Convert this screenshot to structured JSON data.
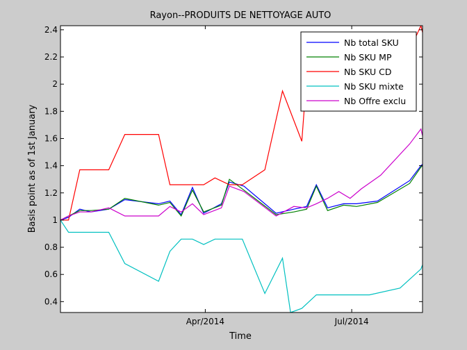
{
  "chart_data": {
    "type": "line",
    "title": "Rayon--PRODUITS DE NETTOYAGE AUTO",
    "xlabel": "Time",
    "ylabel": "Basis point as of 1st January",
    "xlim": [
      "2014-01-01",
      "2014-08-14"
    ],
    "ylim": [
      0.32,
      2.43
    ],
    "x_ticks": [
      {
        "date": "2014-04-01",
        "label": "Apr/2014"
      },
      {
        "date": "2014-07-01",
        "label": "Jul/2014"
      }
    ],
    "y_ticks": [
      0.4,
      0.6,
      0.8,
      1,
      1.2,
      1.4,
      1.6,
      1.8,
      2,
      2.2,
      2.4
    ],
    "y_tick_labels": [
      "0.4",
      "0.6",
      "0.8",
      "1",
      "1.2",
      "1.4",
      "1.6",
      "1.8",
      "2",
      "2.2",
      "2.4"
    ],
    "grid": false,
    "legend_position": "top-right",
    "series": [
      {
        "name": "Nb total SKU",
        "color": "#0000ff",
        "x": [
          "2014-01-01",
          "2014-01-06",
          "2014-01-13",
          "2014-01-20",
          "2014-01-31",
          "2014-02-10",
          "2014-03-03",
          "2014-03-10",
          "2014-03-17",
          "2014-03-24",
          "2014-03-31",
          "2014-04-11",
          "2014-04-16",
          "2014-04-25",
          "2014-05-15",
          "2014-05-26",
          "2014-06-03",
          "2014-06-09",
          "2014-06-16",
          "2014-06-26",
          "2014-07-04",
          "2014-07-17",
          "2014-08-06",
          "2014-08-13",
          "2014-08-14"
        ],
        "y": [
          1.0,
          1.02,
          1.08,
          1.06,
          1.08,
          1.15,
          1.12,
          1.14,
          1.04,
          1.24,
          1.05,
          1.12,
          1.28,
          1.25,
          1.05,
          1.08,
          1.1,
          1.26,
          1.09,
          1.12,
          1.12,
          1.14,
          1.29,
          1.4,
          1.41
        ]
      },
      {
        "name": "Nb SKU MP",
        "color": "#008000",
        "x": [
          "2014-01-01",
          "2014-01-06",
          "2014-01-13",
          "2014-01-20",
          "2014-01-31",
          "2014-02-10",
          "2014-03-03",
          "2014-03-10",
          "2014-03-17",
          "2014-03-24",
          "2014-03-31",
          "2014-04-11",
          "2014-04-16",
          "2014-04-25",
          "2014-05-15",
          "2014-05-26",
          "2014-06-03",
          "2014-06-09",
          "2014-06-16",
          "2014-06-26",
          "2014-07-04",
          "2014-07-17",
          "2014-08-06",
          "2014-08-13",
          "2014-08-14"
        ],
        "y": [
          1.0,
          1.03,
          1.07,
          1.07,
          1.08,
          1.16,
          1.11,
          1.13,
          1.03,
          1.22,
          1.06,
          1.11,
          1.3,
          1.22,
          1.04,
          1.06,
          1.08,
          1.25,
          1.07,
          1.11,
          1.1,
          1.13,
          1.27,
          1.39,
          1.4
        ]
      },
      {
        "name": "Nb SKU CD",
        "color": "#ff0000",
        "x": [
          "2014-01-01",
          "2014-01-06",
          "2014-01-13",
          "2014-01-20",
          "2014-01-31",
          "2014-02-10",
          "2014-03-03",
          "2014-03-10",
          "2014-03-17",
          "2014-03-24",
          "2014-03-31",
          "2014-04-07",
          "2014-04-16",
          "2014-04-24",
          "2014-05-08",
          "2014-05-19",
          "2014-05-31",
          "2014-06-05",
          "2014-06-09",
          "2014-06-16",
          "2014-06-26",
          "2014-07-04",
          "2014-07-17",
          "2014-08-06",
          "2014-08-13",
          "2014-08-14"
        ],
        "y": [
          1.0,
          1.0,
          1.37,
          1.37,
          1.37,
          1.63,
          1.63,
          1.26,
          1.26,
          1.26,
          1.26,
          1.31,
          1.26,
          1.26,
          1.37,
          1.95,
          1.58,
          2.37,
          2.37,
          2.32,
          2.2,
          2.3,
          2.3,
          2.25,
          2.43,
          2.38
        ]
      },
      {
        "name": "Nb SKU mixte",
        "color": "#00c0c0",
        "x": [
          "2014-01-01",
          "2014-01-06",
          "2014-01-13",
          "2014-01-20",
          "2014-01-31",
          "2014-02-10",
          "2014-03-03",
          "2014-03-10",
          "2014-03-17",
          "2014-03-24",
          "2014-03-31",
          "2014-04-07",
          "2014-04-16",
          "2014-04-24",
          "2014-05-08",
          "2014-05-19",
          "2014-05-24",
          "2014-05-31",
          "2014-06-09",
          "2014-06-19",
          "2014-06-30",
          "2014-07-12",
          "2014-07-31",
          "2014-08-13",
          "2014-08-14"
        ],
        "y": [
          1.0,
          0.91,
          0.91,
          0.91,
          0.91,
          0.68,
          0.55,
          0.77,
          0.86,
          0.86,
          0.82,
          0.86,
          0.86,
          0.86,
          0.46,
          0.72,
          0.32,
          0.35,
          0.45,
          0.45,
          0.45,
          0.45,
          0.5,
          0.64,
          0.67
        ]
      },
      {
        "name": "Nb Offre exclu",
        "color": "#cc00cc",
        "x": [
          "2014-01-01",
          "2014-01-06",
          "2014-01-13",
          "2014-01-20",
          "2014-01-31",
          "2014-02-10",
          "2014-03-03",
          "2014-03-10",
          "2014-03-17",
          "2014-03-24",
          "2014-03-31",
          "2014-04-11",
          "2014-04-16",
          "2014-04-25",
          "2014-05-15",
          "2014-05-26",
          "2014-06-03",
          "2014-06-09",
          "2014-06-16",
          "2014-06-23",
          "2014-06-30",
          "2014-07-07",
          "2014-07-19",
          "2014-08-06",
          "2014-08-13",
          "2014-08-14"
        ],
        "y": [
          1.0,
          1.03,
          1.06,
          1.06,
          1.09,
          1.03,
          1.03,
          1.1,
          1.06,
          1.12,
          1.04,
          1.09,
          1.25,
          1.21,
          1.03,
          1.1,
          1.09,
          1.12,
          1.16,
          1.21,
          1.16,
          1.23,
          1.33,
          1.56,
          1.67,
          1.62
        ]
      }
    ]
  }
}
